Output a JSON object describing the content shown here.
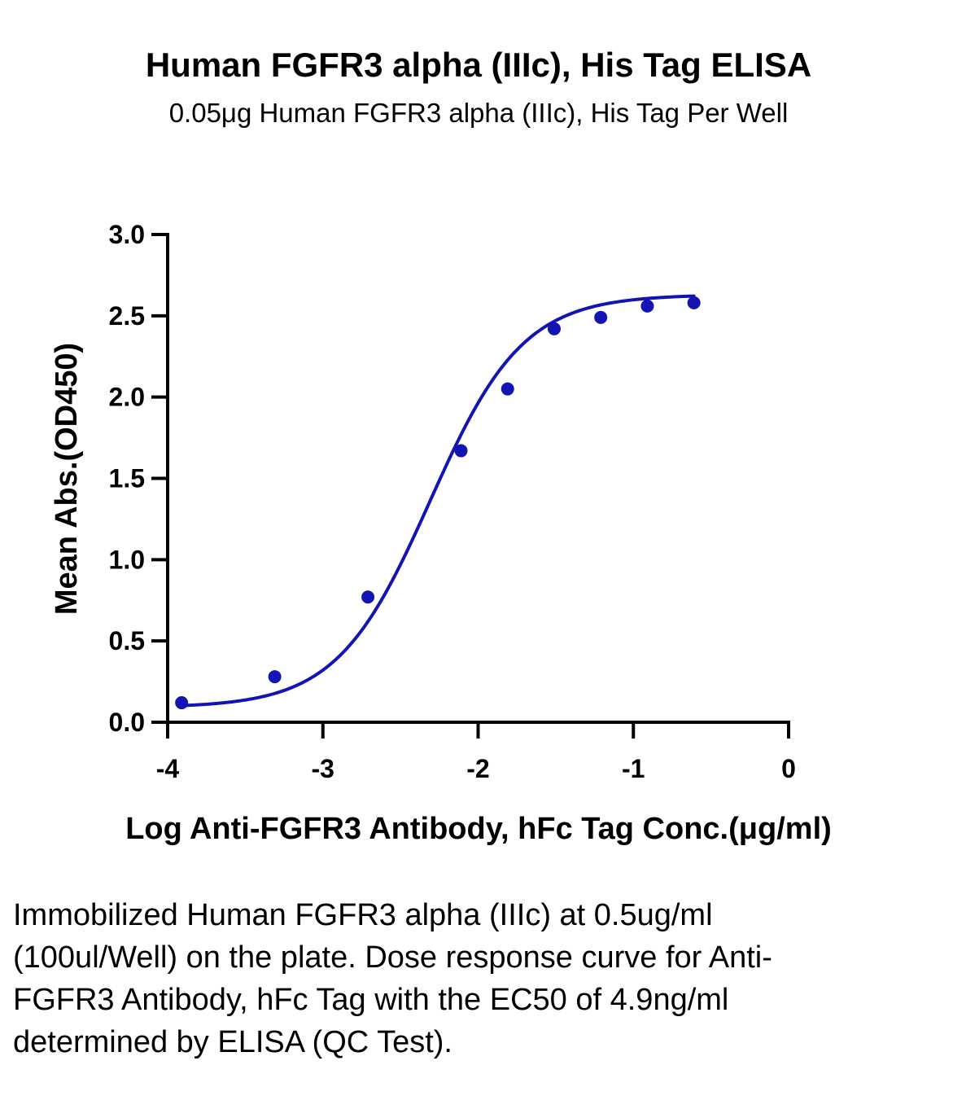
{
  "chart_data": {
    "type": "scatter",
    "title": "Human FGFR3 alpha (IIIc), His Tag ELISA",
    "subtitle": "0.05μg Human FGFR3 alpha (IIIc), His Tag Per Well",
    "xlabel": "Log Anti-FGFR3 Antibody, hFc Tag Conc.(μg/ml)",
    "ylabel": "Mean Abs.(OD450)",
    "xlim": [
      -4,
      0
    ],
    "ylim": [
      0,
      3.0
    ],
    "x_ticks": [
      "-4",
      "-3",
      "-2",
      "-1",
      "0"
    ],
    "y_ticks": [
      "0.0",
      "0.5",
      "1.0",
      "1.5",
      "2.0",
      "2.5",
      "3.0"
    ],
    "grid": false,
    "series": [
      {
        "color": "#1414b4",
        "x": [
          -3.91,
          -3.31,
          -2.71,
          -2.11,
          -1.81,
          -1.51,
          -1.21,
          -0.91,
          -0.61
        ],
        "y": [
          0.12,
          0.28,
          0.77,
          1.67,
          2.05,
          2.42,
          2.49,
          2.56,
          2.58
        ],
        "fit": {
          "model": "4PL",
          "bottom": 0.09,
          "top": 2.63,
          "logEC50": -2.31,
          "hill": 1.45
        }
      }
    ]
  },
  "caption": "Immobilized Human FGFR3 alpha (IIIc) at 0.5ug/ml (100ul/Well) on the plate. Dose response curve for Anti-FGFR3 Antibody, hFc Tag with the EC50 of 4.9ng/ml determined by ELISA (QC Test)."
}
